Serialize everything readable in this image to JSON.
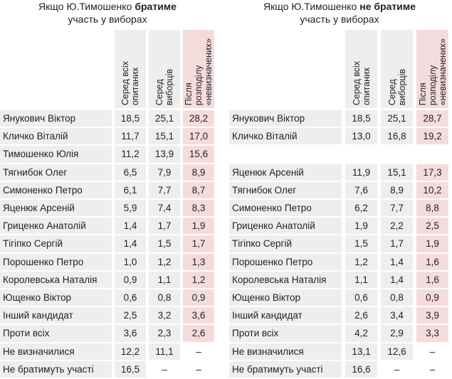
{
  "tables": [
    {
      "title": {
        "prefix": "Якщо Ю.Тимошенко",
        "emphasis": "братиме",
        "line2": "участь у виборах"
      },
      "columns": [
        [
          "Серед всіх",
          "опитаних"
        ],
        [
          "Серед",
          "виборців"
        ],
        [
          "Після",
          "розподілу",
          "«невизначених»"
        ]
      ],
      "rows": [
        [
          "Янукович Віктор",
          "18,5",
          "25,1",
          "28,2"
        ],
        [
          "Кличко Віталій",
          "11,7",
          "15,1",
          "17,0"
        ],
        [
          "Тимошенко Юлія",
          "11,2",
          "13,9",
          "15,6"
        ],
        [
          "Тягнибок Олег",
          "6,5",
          "7,9",
          "8,9"
        ],
        [
          "Симоненко Петро",
          "6,1",
          "7,7",
          "8,7"
        ],
        [
          "Яценюк Арсеній",
          "5,9",
          "7,4",
          "8,3"
        ],
        [
          "Гриценко Анатолій",
          "1,4",
          "1,7",
          "1,9"
        ],
        [
          "Тігіпко Сергій",
          "1,4",
          "1,5",
          "1,7"
        ],
        [
          "Порошенко Петро",
          "1,0",
          "1,2",
          "1,3"
        ],
        [
          "Королевська Наталія",
          "0,9",
          "1,1",
          "1,2"
        ],
        [
          "Ющенко Віктор",
          "0,6",
          "0,8",
          "0,9"
        ],
        [
          "Інший кандидат",
          "2,5",
          "3,2",
          "3,6"
        ],
        [
          "Проти всіх",
          "3,6",
          "2,3",
          "2,6"
        ],
        [
          "Не визначилися",
          "12,2",
          "11,1",
          "–"
        ],
        [
          "Не братимуть участі",
          "16,5",
          "–",
          "–"
        ]
      ]
    },
    {
      "title": {
        "prefix": "Якщо Ю.Тимошенко",
        "emphasis": "не братиме",
        "line2": "участь у виборах"
      },
      "columns": [
        [
          "Серед всіх",
          "опитаних"
        ],
        [
          "Серед",
          "виборців"
        ],
        [
          "Після",
          "розподілу",
          "«невизначених»"
        ]
      ],
      "rows": [
        [
          "Янукович Віктор",
          "18,5",
          "25,1",
          "28,7"
        ],
        [
          "Кличко Віталій",
          "13,0",
          "16,8",
          "19,2"
        ],
        null,
        [
          "Яценюк Арсеній",
          "11,9",
          "15,1",
          "17,3"
        ],
        [
          "Тягнибок Олег",
          "7,6",
          "8,9",
          "10,2"
        ],
        [
          "Симоненко Петро",
          "6,2",
          "7,7",
          "8,8"
        ],
        [
          "Гриценко Анатолій",
          "1,9",
          "2,2",
          "2,5"
        ],
        [
          "Тігіпко Сергій",
          "1,5",
          "1,7",
          "1,9"
        ],
        [
          "Порошенко Петро",
          "1,2",
          "1,4",
          "1,6"
        ],
        [
          "Королевська Наталія",
          "1,1",
          "1,4",
          "1,6"
        ],
        [
          "Ющенко Віктор",
          "0,6",
          "0,8",
          "0,9"
        ],
        [
          "Інший кандидат",
          "2,6",
          "3,4",
          "3,9"
        ],
        [
          "Проти всіх",
          "4,2",
          "2,9",
          "3,3"
        ],
        [
          "Не визначилися",
          "13,1",
          "12,6",
          "–"
        ],
        [
          "Не братимуть участі",
          "16,6",
          "–",
          "–"
        ]
      ]
    }
  ]
}
